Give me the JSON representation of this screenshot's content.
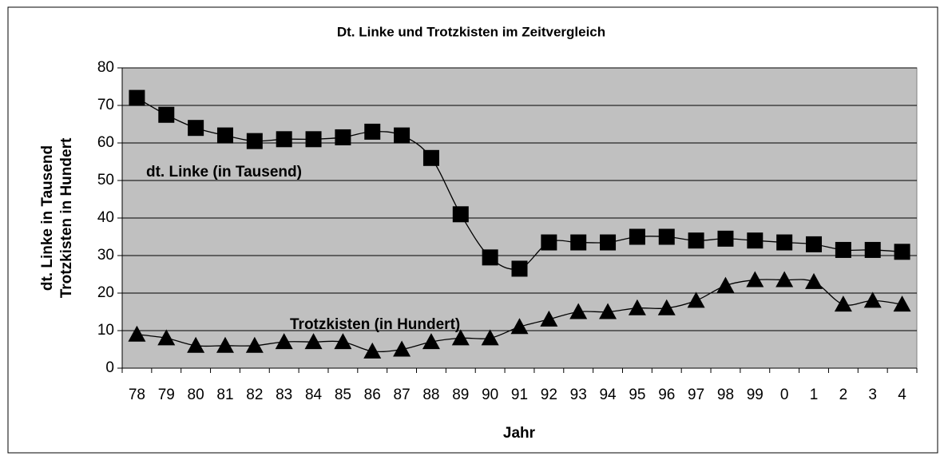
{
  "chart_data": {
    "type": "line",
    "title": "Dt. Linke und Trotzkisten im Zeitvergleich",
    "x_label": "Jahr",
    "y_label": [
      "dt. Linke in Tausend",
      "Trotzkisten in Hundert"
    ],
    "categories": [
      "78",
      "79",
      "80",
      "81",
      "82",
      "83",
      "84",
      "85",
      "86",
      "87",
      "88",
      "89",
      "90",
      "91",
      "92",
      "93",
      "94",
      "95",
      "96",
      "97",
      "98",
      "99",
      "0",
      "1",
      "2",
      "3",
      "4"
    ],
    "series": [
      {
        "color": "#000000",
        "marker": "square",
        "values": [
          72,
          67.5,
          64,
          62,
          60.5,
          61,
          61,
          61.5,
          63,
          62,
          56,
          41,
          29.5,
          26.5,
          33.5,
          33.5,
          33.5,
          35,
          35,
          34,
          34.5,
          34,
          33.5,
          33,
          31.5,
          31.5,
          31
        ]
      },
      {
        "color": "#000000",
        "marker": "triangle",
        "values": [
          9,
          8,
          6,
          6,
          6,
          7,
          7,
          7,
          4.5,
          5,
          7,
          8,
          8,
          11,
          13,
          15,
          15,
          16,
          16,
          18,
          22,
          23.5,
          23.5,
          23,
          17,
          18,
          17
        ]
      }
    ],
    "annotations": [
      "dt. Linke (in Tausend)",
      "Trotzkisten (in Hundert)"
    ],
    "ylim": [
      0,
      80
    ],
    "yticks": [
      0,
      10,
      20,
      30,
      40,
      50,
      60,
      70,
      80
    ],
    "grid": true,
    "plot_background": "#c0c0c0"
  }
}
